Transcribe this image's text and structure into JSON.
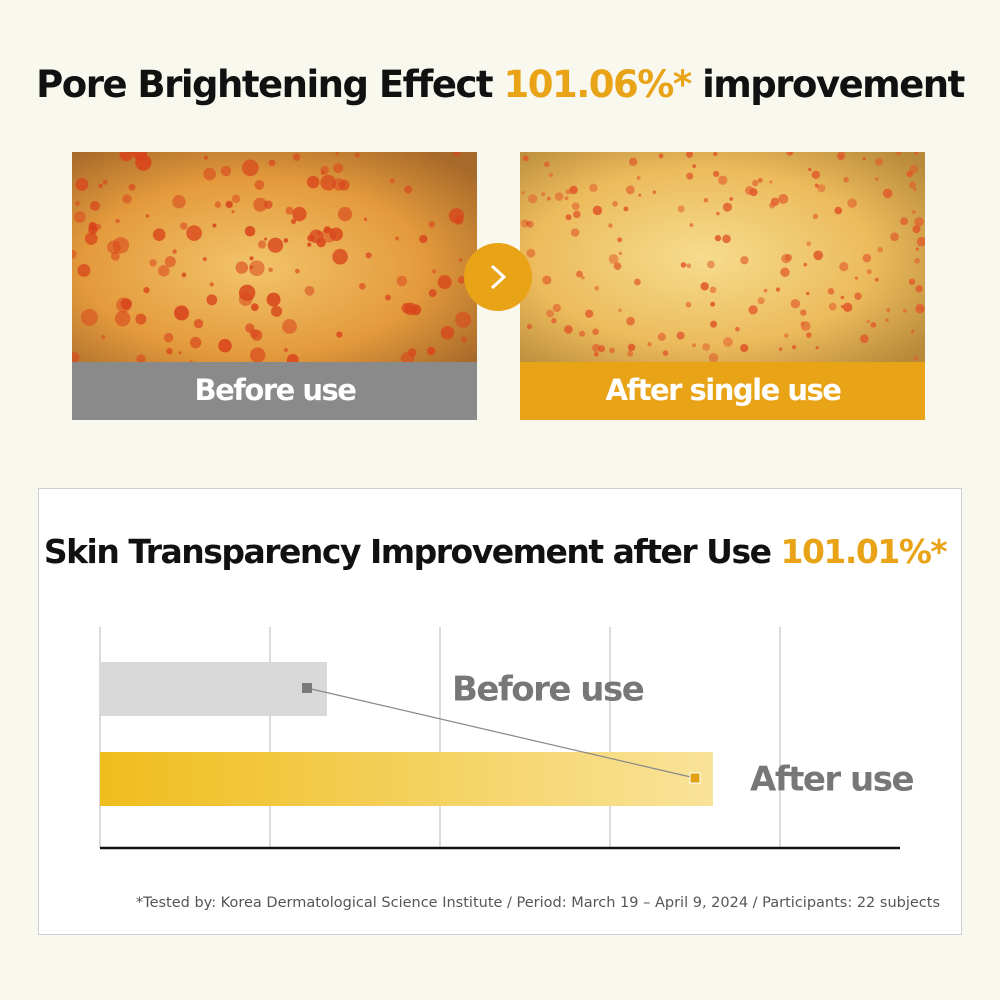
{
  "header": {
    "title": "Pore Brightening Effect",
    "highlight": "101.06%*",
    "suffix": "improvement"
  },
  "comparison": {
    "before_label": "Before use",
    "after_label": "After single use"
  },
  "transparency": {
    "title": "Skin Transparency Improvement after Use",
    "highlight": "101.01%*",
    "before_label": "Before use",
    "after_label": "After use"
  },
  "footnote": "*Tested by: Korea Dermatological Science Institute / Period: March 19 – April 9, 2024 / Participants: 22 subjects"
}
